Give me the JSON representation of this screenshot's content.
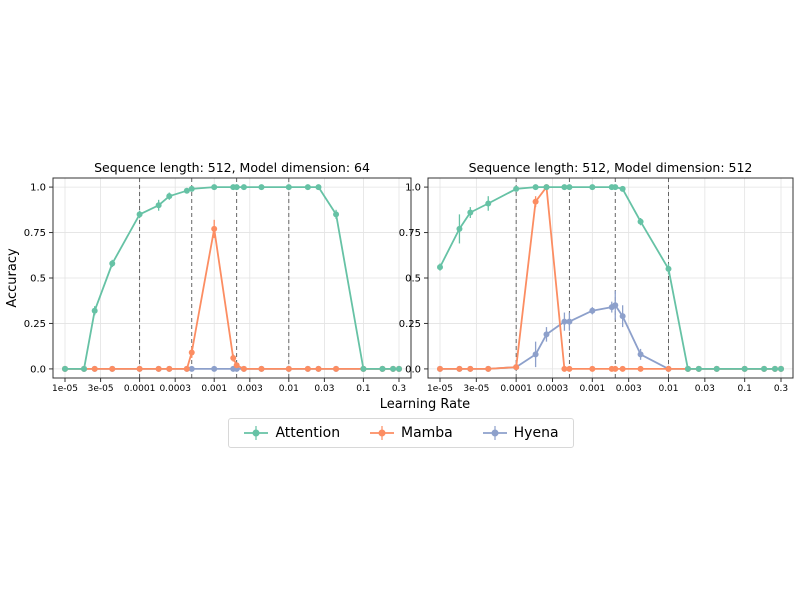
{
  "chart_data": [
    {
      "type": "line",
      "title": "Sequence length: 512, Model dimension: 64",
      "xscale": "log",
      "x_tick_labels": [
        "1e-05",
        "3e-05",
        "0.0001",
        "0.0003",
        "0.001",
        "0.003",
        "0.01",
        "0.03",
        "0.1",
        "0.3"
      ],
      "x_ticks": [
        1e-05,
        3e-05,
        0.0001,
        0.0003,
        0.001,
        0.003,
        0.01,
        0.03,
        0.1,
        0.3
      ],
      "ylabel": "Accuracy",
      "y_tick_labels": [
        "0.0",
        "0.25",
        "0.5",
        "0.75",
        "1.0"
      ],
      "y_ticks": [
        0,
        0.25,
        0.5,
        0.75,
        1.0
      ],
      "ylim": [
        -0.05,
        1.05
      ],
      "grid": true,
      "vlines": [
        0.0001,
        0.0005,
        0.002,
        0.01
      ],
      "x": [
        1e-05,
        1.8e-05,
        2.5e-05,
        4.3e-05,
        0.0001,
        0.00018,
        0.00025,
        0.00043,
        0.0005,
        0.001,
        0.0018,
        0.002,
        0.0025,
        0.0043,
        0.01,
        0.018,
        0.025,
        0.043,
        0.1,
        0.18,
        0.25,
        0.3
      ],
      "series": [
        {
          "name": "Attention",
          "color": "#66c2a5",
          "values": [
            0,
            0,
            0.32,
            0.58,
            0.85,
            0.9,
            0.95,
            0.98,
            0.99,
            1.0,
            1.0,
            1.0,
            1.0,
            1.0,
            1.0,
            1.0,
            1.0,
            0.85,
            0,
            0,
            0,
            0
          ],
          "errors": [
            0,
            0,
            0.025,
            0.02,
            0.02,
            0.03,
            0.02,
            0.01,
            0.005,
            0,
            0,
            0,
            0,
            0,
            0,
            0,
            0,
            0.025,
            0,
            0,
            0,
            0
          ]
        },
        {
          "name": "Mamba",
          "color": "#fc8d62",
          "values": [
            0,
            0,
            0,
            0,
            0,
            0,
            0,
            0,
            0.09,
            0.77,
            0.06,
            0.02,
            0,
            0,
            0,
            0,
            0,
            0,
            0,
            0,
            0,
            0
          ],
          "errors": [
            0,
            0,
            0,
            0,
            0,
            0,
            0,
            0,
            0.03,
            0.05,
            0.02,
            0.01,
            0,
            0,
            0,
            0,
            0,
            0,
            0,
            0,
            0,
            0
          ]
        },
        {
          "name": "Hyena",
          "color": "#8da0cb",
          "values": [
            0,
            0,
            0,
            0,
            0,
            0,
            0,
            0,
            0,
            0,
            0,
            0,
            0,
            0,
            0,
            0,
            0,
            0,
            0,
            0,
            0,
            0
          ],
          "errors": [
            0,
            0,
            0,
            0,
            0,
            0,
            0,
            0,
            0,
            0,
            0,
            0,
            0,
            0,
            0,
            0,
            0,
            0,
            0,
            0,
            0,
            0
          ]
        }
      ]
    },
    {
      "type": "line",
      "title": "Sequence length: 512, Model dimension: 512",
      "xscale": "log",
      "x_tick_labels": [
        "1e-05",
        "3e-05",
        "0.0001",
        "0.0003",
        "0.001",
        "0.003",
        "0.01",
        "0.03",
        "0.1",
        "0.3"
      ],
      "x_ticks": [
        1e-05,
        3e-05,
        0.0001,
        0.0003,
        0.001,
        0.003,
        0.01,
        0.03,
        0.1,
        0.3
      ],
      "ylabel": "",
      "y_tick_labels": [
        "0.0",
        "0.25",
        "0.5",
        "0.75",
        "1.0"
      ],
      "y_ticks": [
        0,
        0.25,
        0.5,
        0.75,
        1.0
      ],
      "ylim": [
        -0.05,
        1.05
      ],
      "grid": true,
      "vlines": [
        0.0001,
        0.0005,
        0.002,
        0.01
      ],
      "x": [
        1e-05,
        1.8e-05,
        2.5e-05,
        4.3e-05,
        0.0001,
        0.00018,
        0.00025,
        0.00043,
        0.0005,
        0.001,
        0.0018,
        0.002,
        0.0025,
        0.0043,
        0.01,
        0.018,
        0.025,
        0.043,
        0.1,
        0.18,
        0.25,
        0.3
      ],
      "series": [
        {
          "name": "Attention",
          "color": "#66c2a5",
          "values": [
            0.56,
            0.77,
            0.86,
            0.91,
            0.99,
            1.0,
            1.0,
            1.0,
            1.0,
            1.0,
            1.0,
            1.0,
            0.99,
            0.81,
            0.55,
            0,
            0,
            0,
            0,
            0,
            0,
            0
          ],
          "errors": [
            0.02,
            0.08,
            0.03,
            0.04,
            0.01,
            0,
            0,
            0,
            0,
            0,
            0,
            0.01,
            0.01,
            0.02,
            0.03,
            0,
            0,
            0,
            0,
            0,
            0,
            0
          ]
        },
        {
          "name": "Mamba",
          "color": "#fc8d62",
          "values": [
            0,
            0,
            0,
            0,
            0.01,
            0.92,
            1.0,
            0,
            0,
            0,
            0,
            0,
            0,
            0,
            0,
            0,
            0,
            0,
            0,
            0,
            0,
            0
          ],
          "errors": [
            0,
            0,
            0,
            0,
            0.01,
            0.03,
            0.01,
            0,
            0,
            0,
            0,
            0,
            0,
            0,
            0,
            0,
            0,
            0,
            0,
            0,
            0,
            0
          ]
        },
        {
          "name": "Hyena",
          "color": "#8da0cb",
          "values": [
            0,
            0,
            0,
            0,
            0.01,
            0.08,
            0.19,
            0.26,
            0.26,
            0.32,
            0.34,
            0.35,
            0.29,
            0.08,
            0,
            0,
            0,
            0,
            0,
            0,
            0,
            0
          ],
          "errors": [
            0,
            0,
            0,
            0,
            0.01,
            0.07,
            0.04,
            0.05,
            0.05,
            0.02,
            0.03,
            0.08,
            0.06,
            0.03,
            0,
            0,
            0,
            0,
            0,
            0,
            0,
            0
          ]
        }
      ]
    }
  ],
  "xlabel": "Learning Rate",
  "legend": [
    {
      "name": "Attention",
      "color": "#66c2a5"
    },
    {
      "name": "Mamba",
      "color": "#fc8d62"
    },
    {
      "name": "Hyena",
      "color": "#8da0cb"
    }
  ]
}
